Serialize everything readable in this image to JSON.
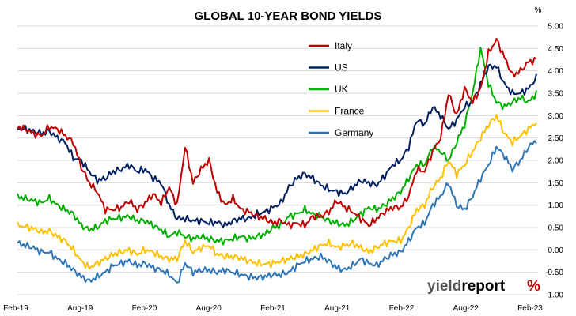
{
  "chart_data": {
    "type": "line",
    "title": "GLOBAL 10-YEAR BOND YIELDS",
    "unit_label": "%",
    "x_tick_labels": [
      "Feb-19",
      "Aug-19",
      "Feb-20",
      "Aug-20",
      "Feb-21",
      "Aug-21",
      "Feb-22",
      "Aug-22",
      "Feb-23"
    ],
    "y_ticks": [
      "-1.00",
      "-0.50",
      "0.00",
      "0.50",
      "1.00",
      "1.50",
      "2.00",
      "2.50",
      "3.00",
      "3.50",
      "4.00",
      "4.50",
      "5.00"
    ],
    "ylim": [
      -1.0,
      5.0
    ],
    "grid": true,
    "legend_position": "top-center",
    "series": [
      {
        "name": "Italy",
        "color": "#c00000",
        "values": [
          2.75,
          2.7,
          2.6,
          2.55,
          2.75,
          2.7,
          2.55,
          2.4,
          1.85,
          1.5,
          1.3,
          0.9,
          0.9,
          0.95,
          1.1,
          0.9,
          1.05,
          1.25,
          1.05,
          1.4,
          1.0,
          2.3,
          1.5,
          1.8,
          2.0,
          1.3,
          1.0,
          1.15,
          0.9,
          0.85,
          0.75,
          0.7,
          0.6,
          0.65,
          0.55,
          0.6,
          0.55,
          0.75,
          0.75,
          0.85,
          1.1,
          0.95,
          0.85,
          0.7,
          0.55,
          0.7,
          0.85,
          0.95,
          0.95,
          1.2,
          1.8,
          1.75,
          2.2,
          2.5,
          3.5,
          3.0,
          3.6,
          3.3,
          3.6,
          4.4,
          4.7,
          4.3,
          3.9,
          4.0,
          4.2,
          4.25
        ]
      },
      {
        "name": "US",
        "color": "#002060",
        "values": [
          2.7,
          2.7,
          2.65,
          2.6,
          2.65,
          2.5,
          2.4,
          2.05,
          2.0,
          1.75,
          1.55,
          1.6,
          1.75,
          1.8,
          1.9,
          1.75,
          1.8,
          1.6,
          1.5,
          1.0,
          0.7,
          0.7,
          0.65,
          0.65,
          0.6,
          0.62,
          0.55,
          0.65,
          0.7,
          0.7,
          0.8,
          0.85,
          0.95,
          1.05,
          1.4,
          1.6,
          1.7,
          1.6,
          1.45,
          1.35,
          1.3,
          1.25,
          1.4,
          1.55,
          1.5,
          1.45,
          1.65,
          1.9,
          2.0,
          2.3,
          2.9,
          2.8,
          3.2,
          3.0,
          2.7,
          2.9,
          3.2,
          3.3,
          3.7,
          4.1,
          4.1,
          3.7,
          3.5,
          3.5,
          3.6,
          3.85
        ]
      },
      {
        "name": "UK",
        "color": "#00b000",
        "values": [
          1.2,
          1.15,
          1.1,
          1.05,
          1.15,
          1.0,
          0.9,
          0.8,
          0.55,
          0.45,
          0.5,
          0.65,
          0.7,
          0.72,
          0.75,
          0.65,
          0.65,
          0.55,
          0.45,
          0.3,
          0.4,
          0.3,
          0.25,
          0.3,
          0.25,
          0.2,
          0.2,
          0.25,
          0.3,
          0.25,
          0.3,
          0.35,
          0.5,
          0.55,
          0.75,
          0.8,
          0.9,
          0.8,
          0.75,
          0.65,
          0.6,
          0.55,
          0.65,
          0.8,
          0.95,
          0.9,
          1.0,
          1.15,
          1.3,
          1.6,
          1.9,
          1.9,
          2.3,
          2.2,
          2.0,
          2.4,
          2.8,
          3.5,
          4.5,
          3.7,
          3.3,
          3.2,
          3.3,
          3.4,
          3.3,
          3.5
        ]
      },
      {
        "name": "France",
        "color": "#ffc000",
        "values": [
          0.55,
          0.52,
          0.48,
          0.4,
          0.42,
          0.3,
          0.2,
          0.0,
          -0.25,
          -0.4,
          -0.3,
          -0.2,
          -0.1,
          -0.05,
          0.0,
          -0.1,
          0.0,
          -0.05,
          -0.15,
          -0.2,
          -0.2,
          0.2,
          -0.05,
          0.05,
          0.1,
          -0.1,
          -0.15,
          -0.15,
          -0.18,
          -0.25,
          -0.3,
          -0.32,
          -0.3,
          -0.25,
          -0.2,
          -0.15,
          -0.1,
          0.0,
          0.1,
          0.15,
          0.05,
          0.1,
          0.15,
          0.05,
          -0.05,
          0.05,
          0.15,
          0.2,
          0.2,
          0.5,
          0.9,
          1.0,
          1.4,
          1.6,
          2.0,
          1.7,
          1.9,
          2.2,
          2.5,
          2.8,
          3.0,
          2.6,
          2.4,
          2.55,
          2.7,
          2.85
        ]
      },
      {
        "name": "Germany",
        "color": "#2e75b6",
        "values": [
          0.15,
          0.1,
          0.05,
          -0.05,
          -0.05,
          -0.2,
          -0.3,
          -0.45,
          -0.6,
          -0.7,
          -0.6,
          -0.5,
          -0.35,
          -0.3,
          -0.25,
          -0.35,
          -0.3,
          -0.4,
          -0.45,
          -0.55,
          -0.75,
          -0.3,
          -0.5,
          -0.45,
          -0.45,
          -0.5,
          -0.45,
          -0.5,
          -0.55,
          -0.6,
          -0.62,
          -0.6,
          -0.55,
          -0.55,
          -0.5,
          -0.35,
          -0.25,
          -0.2,
          -0.15,
          -0.25,
          -0.4,
          -0.45,
          -0.35,
          -0.2,
          -0.3,
          -0.35,
          -0.2,
          -0.1,
          -0.05,
          0.2,
          0.5,
          0.6,
          1.0,
          1.2,
          1.5,
          1.0,
          0.9,
          1.2,
          1.6,
          1.9,
          2.3,
          2.1,
          1.8,
          2.0,
          2.3,
          2.45
        ]
      }
    ]
  },
  "logo": {
    "text_a": "yield",
    "text_b": "report",
    "symbol": "%"
  }
}
